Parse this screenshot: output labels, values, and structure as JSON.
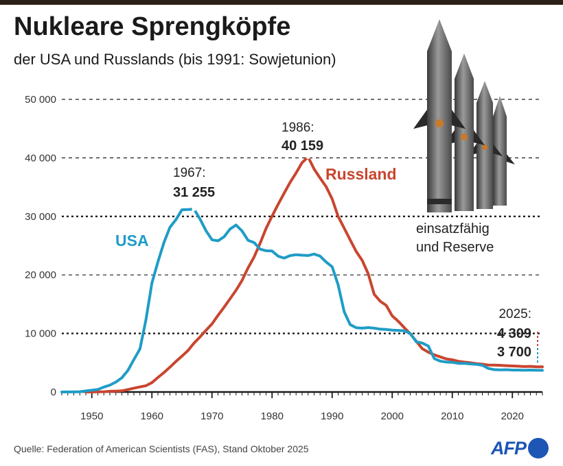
{
  "header": {
    "title": "Nukleare Sprengköpfe",
    "subtitle": "der USA und Russlands (bis 1991: Sowjetunion)"
  },
  "footer": {
    "source": "Quelle: Federation of American Scientists (FAS), Stand Oktober 2025",
    "logo_text": "AFP"
  },
  "colors": {
    "usa": "#1f9cc6",
    "russland": "#c9452f",
    "grid": "#1a1a1a",
    "axis": "#1a1a1a"
  },
  "illustration": {
    "icon": "missile-icon",
    "caption_line1": "einsatzfähig",
    "caption_line2": "und Reserve"
  },
  "chart_data": {
    "type": "line",
    "title": "Nukleare Sprengköpfe",
    "subtitle": "der USA und Russlands (bis 1991: Sowjetunion)",
    "xlabel": "",
    "ylabel": "",
    "xlim": [
      1945,
      2025
    ],
    "ylim": [
      0,
      50000
    ],
    "grid": true,
    "x_ticks": [
      1950,
      1960,
      1970,
      1980,
      1990,
      2000,
      2010,
      2020
    ],
    "x_tick_labels": [
      "1950",
      "1960",
      "1970",
      "1980",
      "1990",
      "2000",
      "2010",
      "2020"
    ],
    "y_ticks": [
      0,
      10000,
      20000,
      30000,
      40000,
      50000
    ],
    "y_tick_labels": [
      "0",
      "10 000",
      "20 000",
      "30 000",
      "40 000",
      "50 000"
    ],
    "series": [
      {
        "name": "USA",
        "label": "USA",
        "x": [
          1945,
          1946,
          1947,
          1948,
          1949,
          1950,
          1951,
          1952,
          1953,
          1954,
          1955,
          1956,
          1957,
          1958,
          1959,
          1960,
          1961,
          1962,
          1963,
          1964,
          1965,
          1966,
          1967,
          1968,
          1969,
          1970,
          1971,
          1972,
          1973,
          1974,
          1975,
          1976,
          1977,
          1978,
          1979,
          1980,
          1981,
          1982,
          1983,
          1984,
          1985,
          1986,
          1987,
          1988,
          1989,
          1990,
          1991,
          1992,
          1993,
          1994,
          1995,
          1996,
          1997,
          1998,
          1999,
          2000,
          2001,
          2002,
          2003,
          2004,
          2005,
          2006,
          2007,
          2008,
          2009,
          2010,
          2011,
          2012,
          2013,
          2014,
          2015,
          2016,
          2017,
          2018,
          2019,
          2020,
          2021,
          2022,
          2023,
          2024,
          2025
        ],
        "values": [
          2,
          9,
          13,
          50,
          170,
          299,
          438,
          841,
          1169,
          1703,
          2422,
          3692,
          5543,
          7345,
          12298,
          18638,
          22229,
          25540,
          28133,
          29463,
          31139,
          31175,
          31255,
          29561,
          27552,
          26008,
          25830,
          26516,
          27835,
          28537,
          27519,
          25914,
          25542,
          24418,
          24138,
          24104,
          23208,
          22886,
          23305,
          23459,
          23368,
          23317,
          23575,
          23205,
          22217,
          21392,
          18306,
          13708,
          11511,
          10979,
          10904,
          11011,
          10903,
          10732,
          10685,
          10577,
          10526,
          10457,
          10027,
          8570,
          8360,
          7853,
          5709,
          5273,
          5113,
          5066,
          4897,
          4881,
          4804,
          4717,
          4571,
          4018,
          3822,
          3785,
          3805,
          3750,
          3750,
          3708,
          3748,
          3708,
          3700
        ]
      },
      {
        "name": "Russland",
        "label": "Russland",
        "x": [
          1949,
          1950,
          1951,
          1952,
          1953,
          1954,
          1955,
          1956,
          1957,
          1958,
          1959,
          1960,
          1961,
          1962,
          1963,
          1964,
          1965,
          1966,
          1967,
          1968,
          1969,
          1970,
          1971,
          1972,
          1973,
          1974,
          1975,
          1976,
          1977,
          1978,
          1979,
          1980,
          1981,
          1982,
          1983,
          1984,
          1985,
          1986,
          1987,
          1988,
          1989,
          1990,
          1991,
          1992,
          1993,
          1994,
          1995,
          1996,
          1997,
          1998,
          1999,
          2000,
          2001,
          2002,
          2003,
          2004,
          2005,
          2006,
          2007,
          2008,
          2009,
          2010,
          2011,
          2012,
          2013,
          2014,
          2015,
          2016,
          2017,
          2018,
          2019,
          2020,
          2021,
          2022,
          2023,
          2024,
          2025
        ],
        "values": [
          1,
          5,
          25,
          50,
          120,
          150,
          200,
          426,
          660,
          869,
          1060,
          1605,
          2471,
          3322,
          4238,
          5221,
          6129,
          7089,
          8339,
          9399,
          10538,
          11643,
          13092,
          14478,
          15915,
          17385,
          19055,
          21205,
          23044,
          25393,
          27935,
          30062,
          32049,
          33952,
          35804,
          37431,
          39197,
          40159,
          38107,
          36538,
          35078,
          32980,
          30000,
          28000,
          26000,
          24000,
          22500,
          20200,
          16700,
          15500,
          14800,
          13000,
          12100,
          11000,
          9950,
          8660,
          7400,
          6800,
          6350,
          6000,
          5650,
          5500,
          5250,
          5100,
          5000,
          4850,
          4750,
          4600,
          4600,
          4550,
          4500,
          4450,
          4400,
          4350,
          4380,
          4310,
          4309
        ]
      }
    ],
    "annotations": [
      {
        "series": "USA",
        "year_label": "1967:",
        "value_label": "31 255",
        "x": 1967,
        "y": 31255
      },
      {
        "series": "Russland",
        "year_label": "1986:",
        "value_label": "40 159",
        "x": 1986,
        "y": 40159
      },
      {
        "series": "latest",
        "year_label": "2025:",
        "value_label_russland": "4 309",
        "value_label_usa": "3 700",
        "x": 2025
      }
    ]
  }
}
